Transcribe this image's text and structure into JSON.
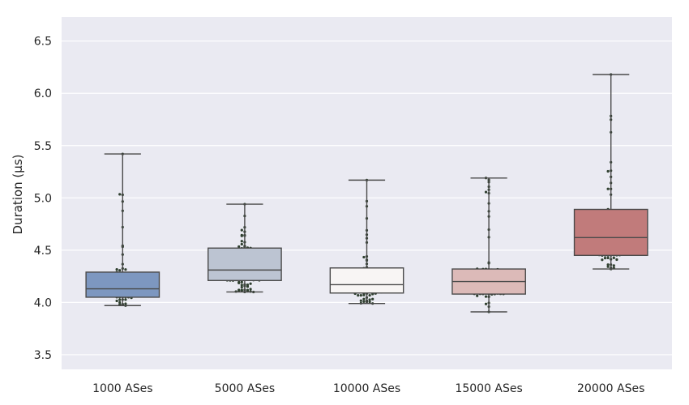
{
  "chart_data": {
    "type": "box",
    "title": "",
    "xlabel": "",
    "ylabel": "Duration (µs)",
    "ylim": [
      3.36,
      6.73
    ],
    "yticks": [
      "3.5",
      "4.0",
      "4.5",
      "5.0",
      "5.5",
      "6.0",
      "6.5"
    ],
    "grid": true,
    "legend": "none",
    "background": "#eaeaf2",
    "swarm_color": "#2f3f2f",
    "categories": [
      "1000 ASes",
      "5000 ASes",
      "10000 ASes",
      "15000 ASes",
      "20000 ASes"
    ],
    "boxes": [
      {
        "category": "1000 ASes",
        "whisker_low": 3.97,
        "q1": 4.05,
        "median": 4.13,
        "q3": 4.29,
        "whisker_high": 5.42,
        "color": "#7d97c0"
      },
      {
        "category": "5000 ASes",
        "whisker_low": 4.1,
        "q1": 4.21,
        "median": 4.31,
        "q3": 4.52,
        "whisker_high": 4.94,
        "color": "#bcc4d2"
      },
      {
        "category": "10000 ASes",
        "whisker_low": 3.99,
        "q1": 4.09,
        "median": 4.17,
        "q3": 4.33,
        "whisker_high": 5.17,
        "color": "#f8f5f4"
      },
      {
        "category": "15000 ASes",
        "whisker_low": 3.91,
        "q1": 4.08,
        "median": 4.2,
        "q3": 4.32,
        "whisker_high": 5.19,
        "color": "#dcbab8"
      },
      {
        "category": "20000 ASes",
        "whisker_low": 4.32,
        "q1": 4.45,
        "median": 4.62,
        "q3": 4.89,
        "whisker_high": 6.18,
        "color": "#c17b7b"
      }
    ]
  }
}
